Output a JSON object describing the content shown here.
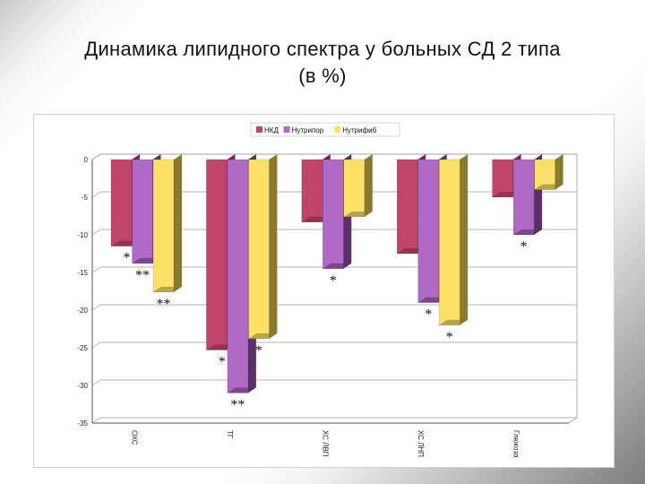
{
  "slide": {
    "title_line1": "Динамика липидного спектра у больных СД 2 типа",
    "title_line2": "(в %)"
  },
  "chart_data": {
    "type": "bar",
    "categories": [
      "ОХС",
      "ТГ",
      "ХС ЛВП",
      "ХС ЛНП",
      "Глюкоза"
    ],
    "series": [
      {
        "name": "НКД",
        "color": "#c0456a",
        "side": "#7a2840",
        "values": [
          -11.5,
          -25.3,
          -8.3,
          -12.5,
          -5.0
        ]
      },
      {
        "name": "Нутрипор",
        "color": "#b06ac6",
        "side": "#5c2f6a",
        "values": [
          -13.8,
          -31.0,
          -14.5,
          -19.0,
          -10.0
        ]
      },
      {
        "name": "Нутрифиб",
        "color": "#fde068",
        "side": "#8a7a2e",
        "values": [
          -17.6,
          -23.8,
          -7.6,
          -22.0,
          -4.0
        ]
      }
    ],
    "ylim": [
      -35,
      0
    ],
    "yticks": [
      0,
      -5,
      -10,
      -15,
      -20,
      -25,
      -30,
      -35
    ],
    "grid": true,
    "legend": "top",
    "annotations": [
      {
        "category": 0,
        "series": 0,
        "text": "*"
      },
      {
        "category": 0,
        "series": 1,
        "text": "**"
      },
      {
        "category": 0,
        "series": 2,
        "text": "**"
      },
      {
        "category": 1,
        "series": 0,
        "text": "*"
      },
      {
        "category": 1,
        "series": 1,
        "text": "**"
      },
      {
        "category": 1,
        "series": 2,
        "text": "*"
      },
      {
        "category": 2,
        "series": 1,
        "text": "*"
      },
      {
        "category": 3,
        "series": 1,
        "text": "*"
      },
      {
        "category": 3,
        "series": 2,
        "text": "*"
      },
      {
        "category": 4,
        "series": 1,
        "text": "*"
      }
    ]
  }
}
